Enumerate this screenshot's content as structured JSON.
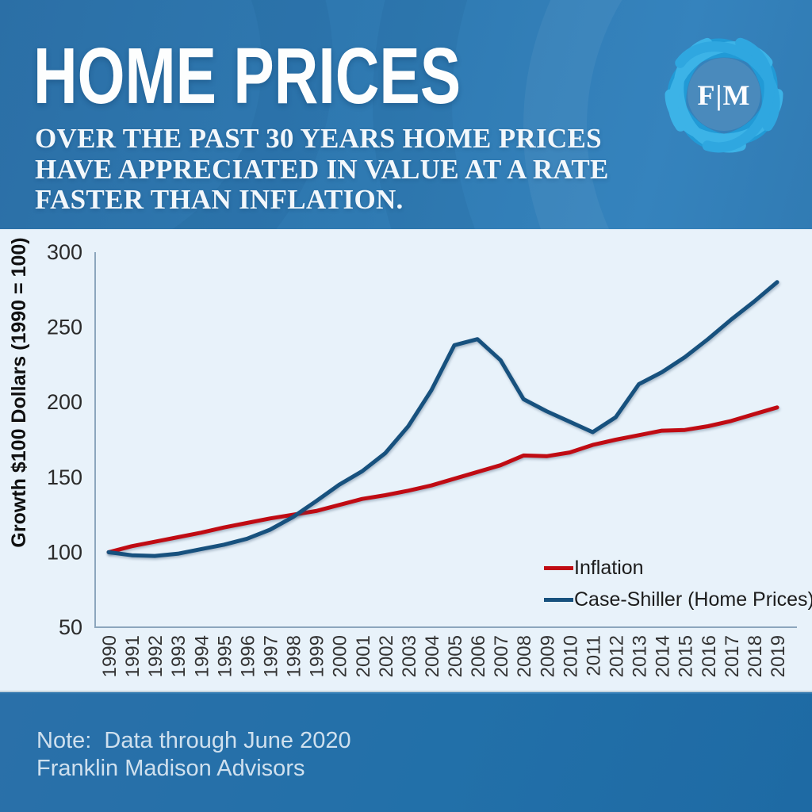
{
  "header": {
    "title": "HOME PRICES",
    "subtitle_lines": [
      "OVER THE PAST 30 YEARS HOME PRICES",
      "HAVE APPRECIATED IN VALUE AT A RATE",
      "FASTER THAN INFLATION."
    ],
    "logo_text": "F|M"
  },
  "footer": {
    "note_line1": "Note:  Data through June 2020",
    "note_line2": "Franklin Madison Advisors"
  },
  "colors": {
    "background_blue": "#2e77b0",
    "panel_background": "#e8f2fa",
    "axis": "#8ca6bd",
    "inflation_line": "#c00b13",
    "case_shiller_line": "#17517e",
    "logo_ribbon": "#2fa7e0"
  },
  "chart_data": {
    "type": "line",
    "title": "",
    "xlabel": "",
    "ylabel": "Growth $100 Dollars (1990 = 100)",
    "ylim": [
      50,
      300
    ],
    "y_ticks": [
      300,
      250,
      200,
      150,
      100,
      50
    ],
    "grid": false,
    "legend_position": "inside lower right",
    "categories": [
      "1990",
      "1991",
      "1992",
      "1993",
      "1994",
      "1995",
      "1996",
      "1997",
      "1998",
      "1999",
      "2000",
      "2001",
      "2002",
      "2003",
      "2004",
      "2005",
      "2006",
      "2007",
      "2008",
      "2009",
      "2010",
      "2011",
      "2012",
      "2013",
      "2014",
      "2015",
      "2016",
      "2017",
      "2018",
      "2019"
    ],
    "series": [
      {
        "name": "Inflation",
        "color": "#c00b13",
        "values": [
          100,
          104,
          107,
          110,
          113,
          116.5,
          119.5,
          122.5,
          125,
          127.5,
          131.5,
          135.5,
          138,
          141,
          144.5,
          149,
          153.5,
          158,
          164.5,
          164,
          166.5,
          171.5,
          175,
          178,
          181,
          181.5,
          184,
          187.5,
          192,
          196.5
        ]
      },
      {
        "name": "Case-Shiller (Home Prices)",
        "color": "#17517e",
        "values": [
          100,
          98,
          97.5,
          99,
          102,
          105,
          109,
          115,
          123.5,
          134,
          145,
          154,
          166,
          184,
          208,
          238,
          242,
          228,
          202,
          194,
          187,
          180,
          190,
          212,
          220,
          230,
          242,
          255,
          267,
          280
        ]
      }
    ]
  }
}
